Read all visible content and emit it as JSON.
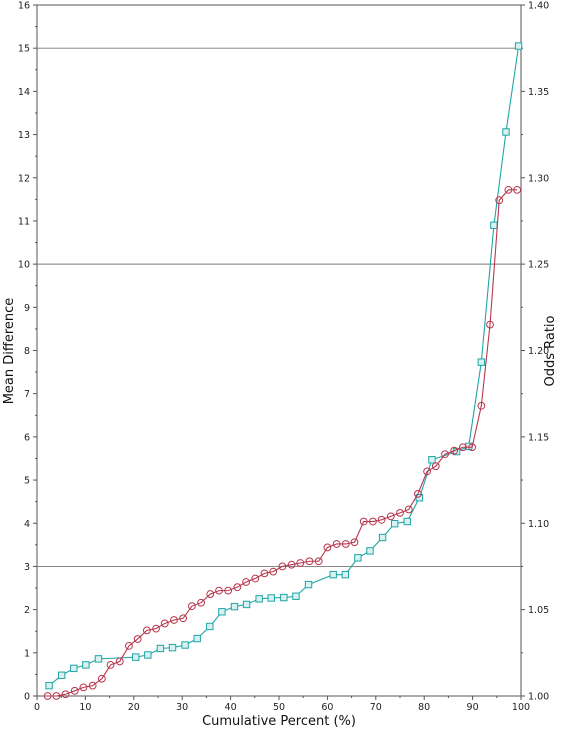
{
  "chart_data": {
    "type": "line",
    "title": "",
    "xlabel": "Cumulative Percent (%)",
    "ylabel": "Mean Difference",
    "y2label": "Odds Ratio",
    "xlim": [
      0,
      100
    ],
    "ylim": [
      0,
      16
    ],
    "y2lim": [
      1.0,
      1.4
    ],
    "xticks": [
      "0",
      "10",
      "20",
      "30",
      "40",
      "50",
      "60",
      "70",
      "80",
      "90",
      "100"
    ],
    "yticks": [
      "0",
      "1",
      "2",
      "3",
      "4",
      "5",
      "6",
      "7",
      "8",
      "9",
      "10",
      "11",
      "12",
      "13",
      "14",
      "15",
      "16"
    ],
    "y2ticks": [
      "1.00",
      "1.05",
      "1.10",
      "1.15",
      "1.20",
      "1.25",
      "1.30",
      "1.35",
      "1.40"
    ],
    "reference_lines": [
      15,
      10,
      3
    ],
    "grid": false,
    "legend": "none",
    "series": [
      {
        "axis": "left",
        "marker": "square",
        "color": "#1fa5a5",
        "x": [
          2.5,
          5.1,
          7.6,
          10.1,
          12.7,
          20.4,
          22.9,
          25.5,
          28.0,
          30.6,
          33.1,
          35.7,
          38.2,
          40.8,
          43.3,
          45.9,
          48.4,
          51.0,
          53.5,
          56.1,
          61.2,
          63.7,
          66.3,
          68.8,
          71.4,
          73.9,
          76.5,
          79.0,
          81.6,
          86.7,
          89.2,
          91.8,
          94.4,
          96.9,
          99.5
        ],
        "values": [
          0.24,
          0.48,
          0.64,
          0.72,
          0.86,
          0.9,
          0.95,
          1.1,
          1.12,
          1.18,
          1.33,
          1.61,
          1.95,
          2.07,
          2.12,
          2.25,
          2.27,
          2.28,
          2.31,
          2.58,
          2.81,
          2.81,
          3.2,
          3.36,
          3.67,
          3.99,
          4.04,
          4.59,
          5.47,
          5.66,
          5.78,
          7.73,
          10.9,
          13.06,
          15.05
        ]
      },
      {
        "axis": "right",
        "marker": "circle",
        "color": "#b7374e",
        "x": [
          2.2,
          4.0,
          5.9,
          7.8,
          9.6,
          11.5,
          13.4,
          15.2,
          17.1,
          19.0,
          20.8,
          22.7,
          24.6,
          26.4,
          28.3,
          30.2,
          32.0,
          33.9,
          35.8,
          37.6,
          39.5,
          41.4,
          43.2,
          45.1,
          47.0,
          48.8,
          50.7,
          52.6,
          54.4,
          56.3,
          58.2,
          60.0,
          61.9,
          63.8,
          65.6,
          67.5,
          69.4,
          71.2,
          73.1,
          75.0,
          76.8,
          78.7,
          80.6,
          82.4,
          84.3,
          86.2,
          88.0,
          89.9,
          91.8,
          93.6,
          95.5,
          97.4,
          99.2
        ],
        "values": [
          1.0,
          1.0,
          1.001,
          1.003,
          1.005,
          1.006,
          1.01,
          1.018,
          1.02,
          1.029,
          1.033,
          1.038,
          1.039,
          1.042,
          1.044,
          1.045,
          1.052,
          1.054,
          1.059,
          1.061,
          1.061,
          1.063,
          1.066,
          1.068,
          1.071,
          1.072,
          1.075,
          1.076,
          1.077,
          1.078,
          1.078,
          1.086,
          1.088,
          1.088,
          1.089,
          1.101,
          1.101,
          1.102,
          1.104,
          1.106,
          1.108,
          1.117,
          1.13,
          1.133,
          1.14,
          1.142,
          1.144,
          1.144,
          1.168,
          1.215,
          1.287,
          1.293,
          1.293
        ]
      }
    ]
  }
}
